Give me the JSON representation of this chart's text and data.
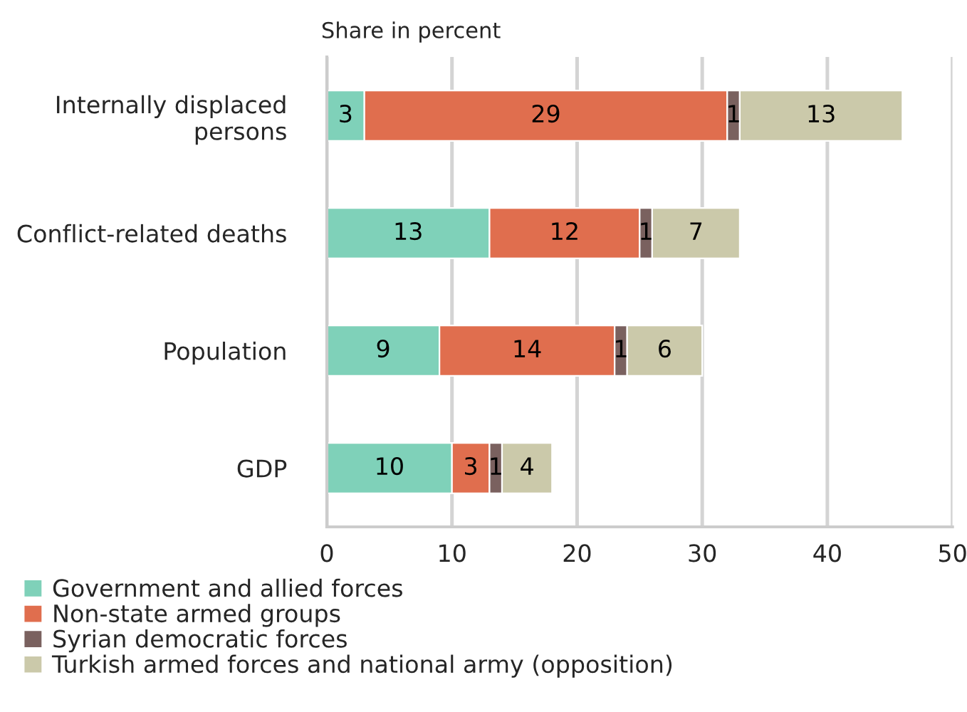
{
  "chart_data": {
    "type": "bar",
    "orientation": "horizontal",
    "stacked": true,
    "title": "Share in percent",
    "categories": [
      "Internally displaced\npersons",
      "Conflict-related deaths",
      "Population",
      "GDP"
    ],
    "series": [
      {
        "name": "Government and allied forces",
        "color": "#7fd1b9",
        "values": [
          3,
          13,
          9,
          10
        ]
      },
      {
        "name": "Non-state armed groups",
        "color": "#e06e4e",
        "values": [
          29,
          12,
          14,
          3
        ]
      },
      {
        "name": "Syrian democratic forces",
        "color": "#7a615f",
        "values": [
          1,
          1,
          1,
          1
        ]
      },
      {
        "name": "Turkish armed forces and national army (opposition)",
        "color": "#cbc9aa",
        "values": [
          13,
          7,
          6,
          4
        ]
      }
    ],
    "xlim": [
      0,
      50
    ],
    "xticks": [
      0,
      10,
      20,
      30,
      40,
      50
    ],
    "grid": "x",
    "legend": "bottom",
    "data_labels": true
  }
}
